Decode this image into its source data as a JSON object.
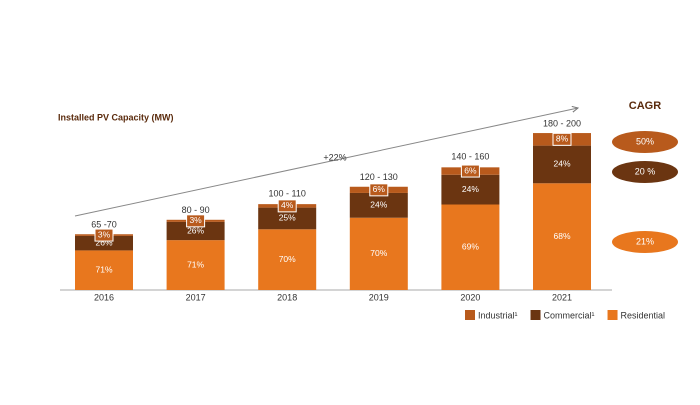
{
  "chart_data": {
    "type": "stacked-bar",
    "title": "Installed PV Capacity (MW)",
    "categories": [
      "2016",
      "2017",
      "2018",
      "2019",
      "2020",
      "2021"
    ],
    "total_min": [
      65,
      80,
      100,
      120,
      140,
      180
    ],
    "total_max": [
      70,
      90,
      110,
      130,
      160,
      200
    ],
    "total_labels": [
      "65 -70",
      "80 - 90",
      "100 - 110",
      "120 - 130",
      "140 - 160",
      "180 - 200"
    ],
    "series": [
      {
        "name": "Industrial¹",
        "color": "#b85a1c",
        "values": [
          3,
          3,
          4,
          6,
          6,
          8
        ],
        "value_labels": [
          "3%",
          "3%",
          "4%",
          "6%",
          "6%",
          "8%"
        ]
      },
      {
        "name": "Commercial¹",
        "color": "#6b3511",
        "values": [
          26,
          26,
          25,
          24,
          24,
          24
        ],
        "value_labels": [
          "26%",
          "26%",
          "25%",
          "24%",
          "24%",
          "24%"
        ]
      },
      {
        "name": "Residential",
        "color": "#e8771e",
        "values": [
          71,
          71,
          70,
          70,
          69,
          68
        ],
        "value_labels": [
          "71%",
          "71%",
          "70%",
          "70%",
          "69%",
          "68%"
        ]
      }
    ],
    "growth_label": "+22%",
    "cagr": {
      "title": "CAGR",
      "values": [
        50,
        20,
        21
      ],
      "value_labels": [
        "50%",
        "20 %",
        "21%"
      ]
    }
  }
}
